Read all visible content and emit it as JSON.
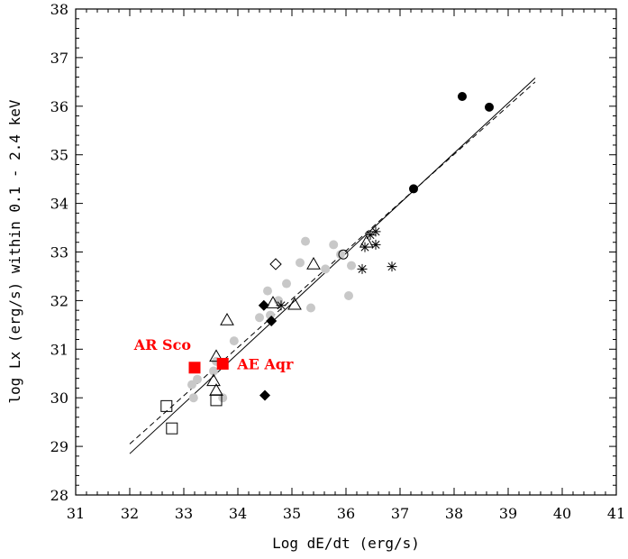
{
  "chart_data": {
    "type": "scatter",
    "title": "",
    "xlabel": "Log dE/dt (erg/s)",
    "ylabel": "log Lx  (erg/s)   within 0.1 - 2.4 keV",
    "xlim": [
      31,
      41
    ],
    "ylim": [
      28,
      38
    ],
    "xticks": [
      "31",
      "32",
      "33",
      "34",
      "35",
      "36",
      "37",
      "38",
      "39",
      "40",
      "41"
    ],
    "yticks": [
      "28",
      "29",
      "30",
      "31",
      "32",
      "33",
      "34",
      "35",
      "36",
      "37",
      "38"
    ],
    "grid": false,
    "highlight_color": "#ff0000",
    "series": [
      {
        "name": "gray filled circles",
        "marker": "circle-filled-gray",
        "points": [
          [
            33.15,
            30.27
          ],
          [
            33.18,
            30.0
          ],
          [
            33.25,
            30.38
          ],
          [
            33.55,
            30.55
          ],
          [
            33.6,
            30.75
          ],
          [
            33.72,
            30.0
          ],
          [
            33.93,
            31.17
          ],
          [
            34.4,
            31.65
          ],
          [
            34.55,
            32.2
          ],
          [
            34.6,
            31.7
          ],
          [
            34.75,
            32.0
          ],
          [
            34.9,
            32.35
          ],
          [
            35.15,
            32.78
          ],
          [
            35.25,
            33.22
          ],
          [
            35.35,
            31.85
          ],
          [
            35.62,
            32.65
          ],
          [
            35.77,
            33.15
          ],
          [
            35.9,
            32.95
          ],
          [
            36.05,
            32.1
          ],
          [
            36.1,
            32.72
          ]
        ]
      },
      {
        "name": "black filled circles",
        "marker": "circle-filled-black",
        "points": [
          [
            37.25,
            34.3
          ],
          [
            38.15,
            36.2
          ],
          [
            38.65,
            35.98
          ]
        ]
      },
      {
        "name": "open circle",
        "marker": "circle-open",
        "points": [
          [
            35.95,
            32.95
          ]
        ]
      },
      {
        "name": "asterisks",
        "marker": "asterisk",
        "points": [
          [
            34.8,
            31.9
          ],
          [
            36.3,
            32.65
          ],
          [
            36.35,
            33.1
          ],
          [
            36.45,
            33.35
          ],
          [
            36.55,
            33.42
          ],
          [
            36.55,
            33.15
          ],
          [
            36.85,
            32.7
          ]
        ]
      },
      {
        "name": "open triangles",
        "marker": "triangle-open",
        "points": [
          [
            33.55,
            30.35
          ],
          [
            33.6,
            30.15
          ],
          [
            33.6,
            30.85
          ],
          [
            33.8,
            31.6
          ],
          [
            34.65,
            31.95
          ],
          [
            35.05,
            31.92
          ],
          [
            35.4,
            32.75
          ],
          [
            36.38,
            33.2
          ]
        ]
      },
      {
        "name": "open squares",
        "marker": "square-open",
        "points": [
          [
            32.68,
            29.83
          ],
          [
            32.78,
            29.37
          ],
          [
            33.6,
            29.95
          ]
        ]
      },
      {
        "name": "filled diamonds",
        "marker": "diamond-filled",
        "points": [
          [
            34.48,
            31.9
          ],
          [
            34.62,
            31.58
          ],
          [
            34.5,
            30.05
          ]
        ]
      },
      {
        "name": "open diamond",
        "marker": "diamond-open",
        "points": [
          [
            34.7,
            32.75
          ]
        ]
      },
      {
        "name": "highlighted sources",
        "marker": "square-filled-red",
        "points": [
          [
            33.2,
            30.62
          ],
          [
            33.72,
            30.7
          ]
        ],
        "labels": [
          "AR Sco",
          "AE Aqr"
        ]
      }
    ],
    "fit_lines": [
      {
        "name": "solid fit",
        "style": "solid",
        "x": [
          32.0,
          39.5
        ],
        "y": [
          28.85,
          36.58
        ]
      },
      {
        "name": "dashed fit",
        "style": "dashed",
        "x": [
          32.0,
          39.5
        ],
        "y": [
          29.05,
          36.5
        ]
      }
    ]
  }
}
